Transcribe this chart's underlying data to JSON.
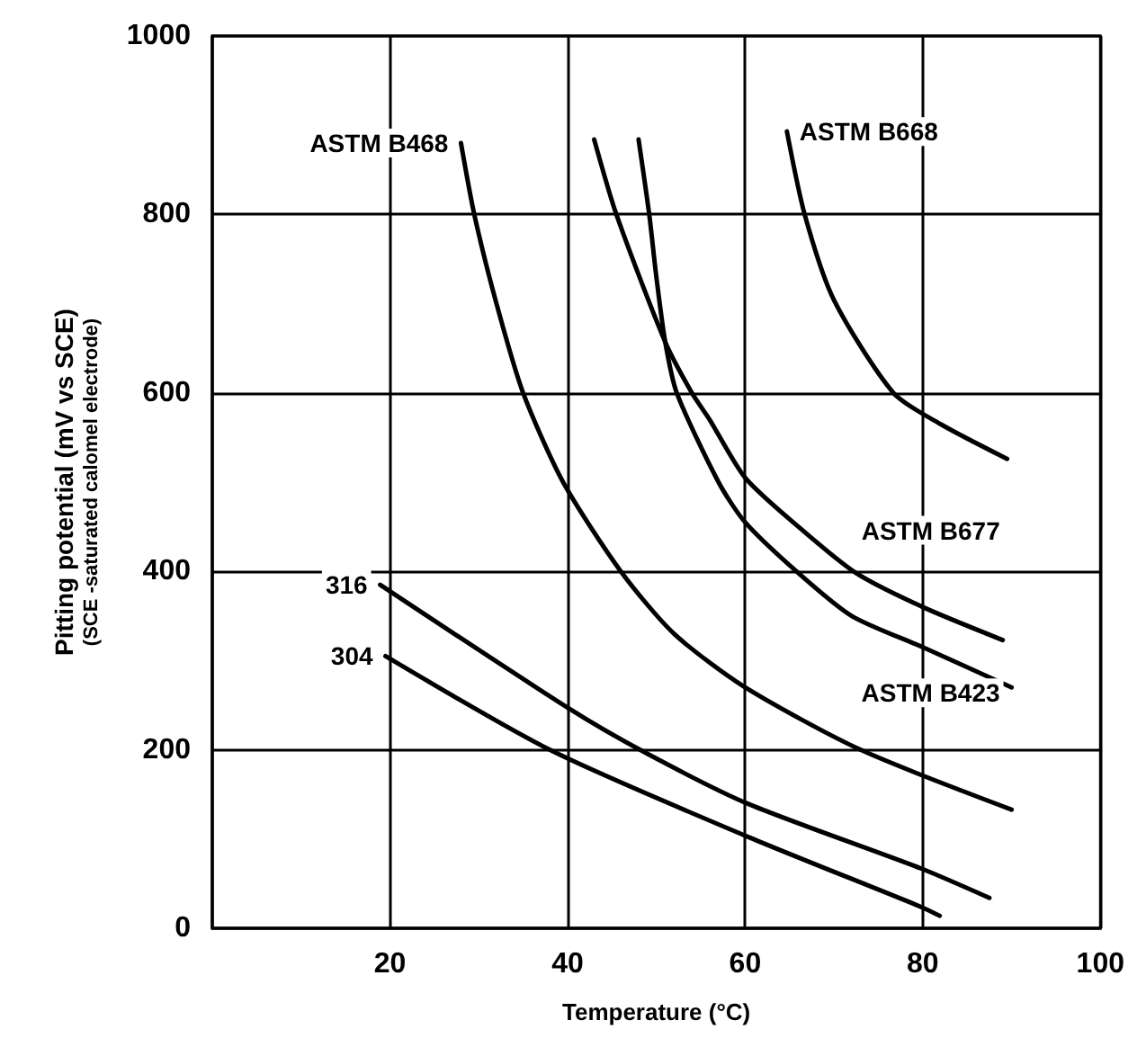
{
  "chart_data": {
    "type": "line",
    "xlabel": "Temperature (°C)",
    "ylabel": "Pitting potential (mV vs SCE)\n(SCE -saturated calomel electrode)",
    "xlim": [
      0,
      100
    ],
    "xticks": [
      {
        "value": 0,
        "label": null
      },
      20,
      40,
      60,
      80,
      100
    ],
    "ylim": [
      0,
      1000
    ],
    "yticks": [
      0,
      200,
      400,
      600,
      800,
      1000
    ],
    "grid": true,
    "legend": false,
    "marker": "none",
    "line_style": "solid",
    "series": [
      {
        "name": "ASTM B468",
        "color": "#000000",
        "x": [
          28,
          29.5,
          32,
          35,
          39.5,
          46,
          52,
          60,
          73,
          90
        ],
        "values": [
          880,
          800,
          700,
          600,
          500,
          400,
          330,
          270,
          200,
          133
        ]
      },
      {
        "name": "ASTM B668",
        "color": "#000000",
        "x": [
          64.7,
          66.7,
          70,
          76.7,
          82,
          89.5
        ],
        "values": [
          893,
          800,
          704,
          600,
          565,
          526
        ]
      },
      {
        "name": "ASTM B677",
        "color": "#000000",
        "x": [
          43,
          45.5,
          51,
          54,
          56,
          60,
          66,
          72.5,
          80,
          89
        ],
        "values": [
          884,
          800,
          657,
          600,
          570,
          505,
          450,
          398,
          360,
          323
        ]
      },
      {
        "name": "ASTM B423",
        "color": "#000000",
        "x": [
          48,
          49.2,
          50,
          51,
          52.3,
          57,
          60,
          66,
          72,
          80,
          90
        ],
        "values": [
          884,
          800,
          730,
          657,
          600,
          500,
          455,
          398,
          350,
          315,
          270
        ]
      },
      {
        "name": "316",
        "color": "#000000",
        "x": [
          18.9,
          40.2,
          48.9,
          60.2,
          79.8,
          87.5
        ],
        "values": [
          385,
          246,
          196,
          140,
          67,
          34
        ]
      },
      {
        "name": "304",
        "color": "#000000",
        "x": [
          19.5,
          38.2,
          60.2,
          79.8,
          81.9
        ],
        "values": [
          305,
          199,
          103,
          24,
          14
        ]
      }
    ]
  }
}
